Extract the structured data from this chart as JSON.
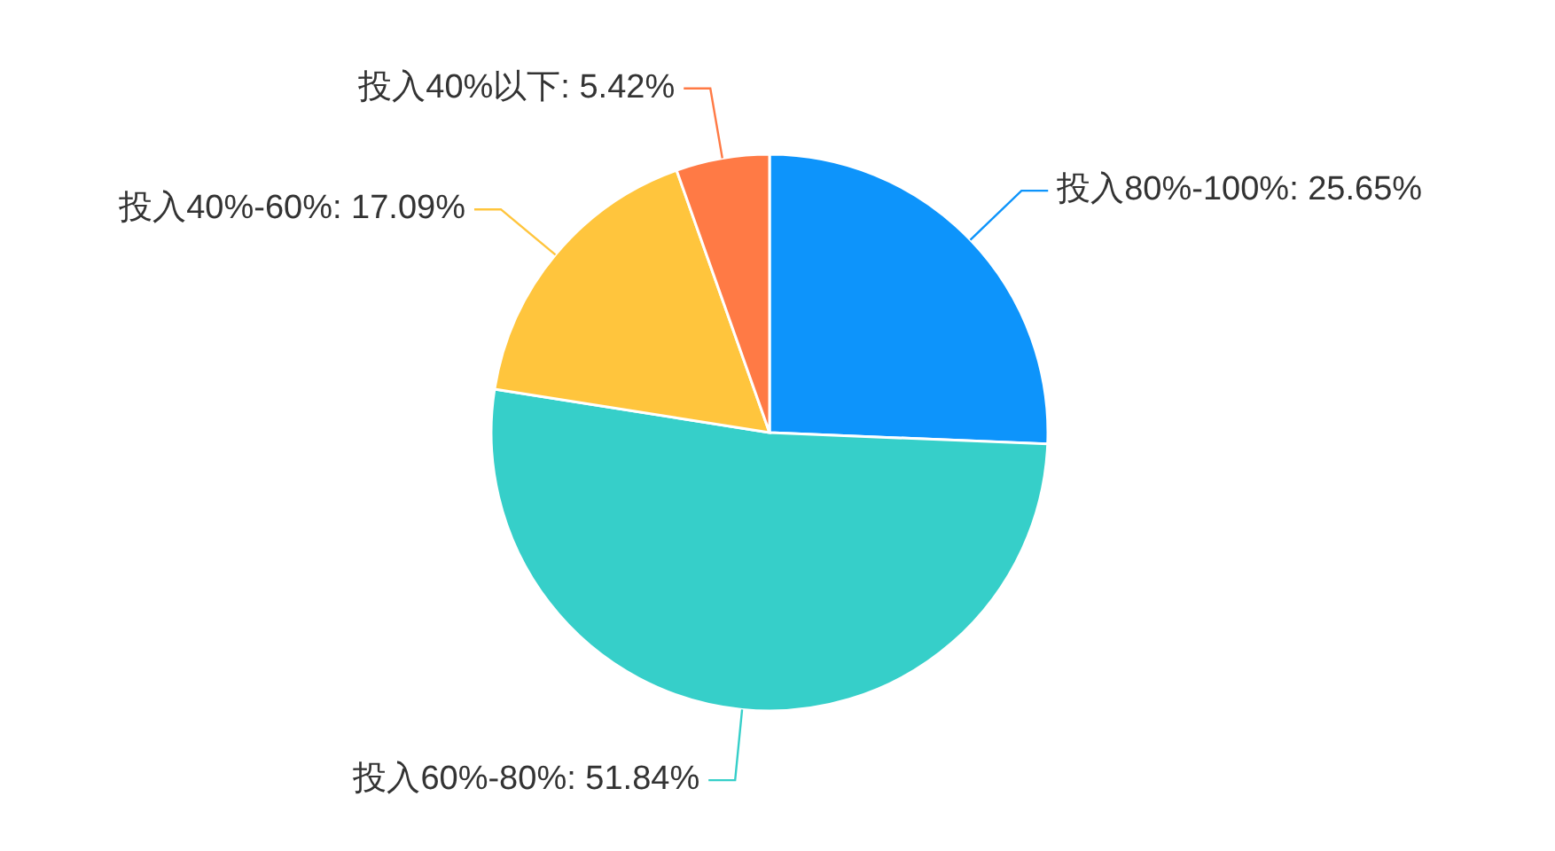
{
  "chart_data": {
    "type": "pie",
    "categories": [
      "投入80%-100%",
      "投入60%-80%",
      "投入40%-60%",
      "投入40%以下"
    ],
    "values": [
      25.65,
      51.84,
      17.09,
      5.42
    ],
    "value_labels": [
      ": 25.65%",
      ": 51.84%",
      ": 17.09%",
      ": 5.42%"
    ],
    "colors": [
      "#0d94fb",
      "#36cfc9",
      "#ffc53d",
      "#ff7a45"
    ]
  }
}
